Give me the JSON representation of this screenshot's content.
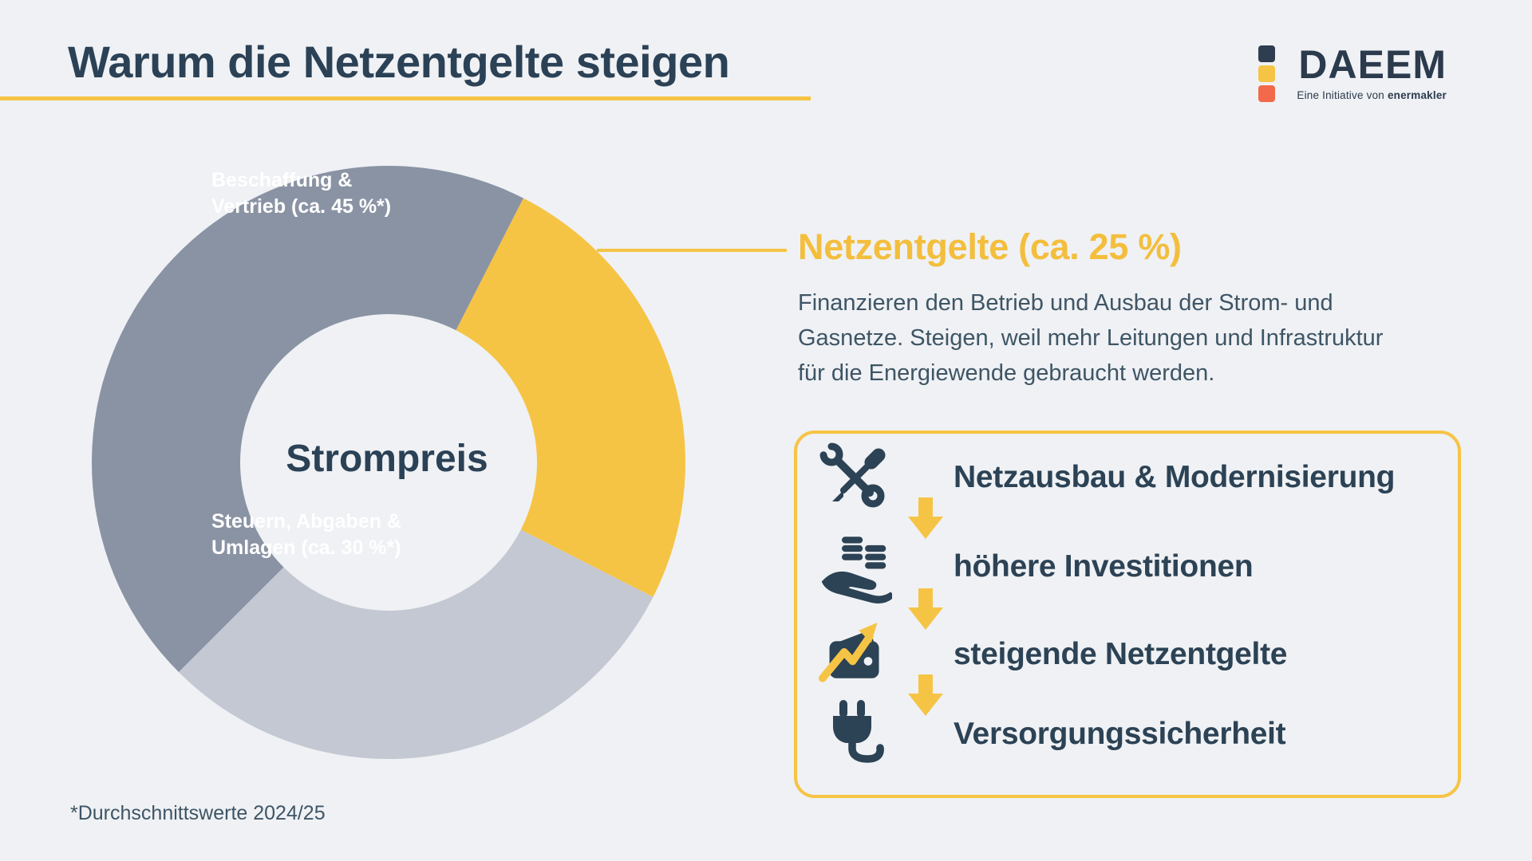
{
  "page": {
    "title": "Warum die Netzentgelte steigen",
    "footnote": "*Durchschnittswerte 2024/25",
    "background_color": "#EFF1F4"
  },
  "logo": {
    "wordmark": "DAEEM",
    "tagline_prefix": "Eine Initiative von ",
    "tagline_brand": "enermakler",
    "square_colors": [
      "#2E3D4F",
      "#F6C445",
      "#F2694B"
    ]
  },
  "chart_data": {
    "type": "pie",
    "donut": true,
    "center_label": "Strompreis",
    "unit": "%",
    "start_angle_deg": 27,
    "legend_position": "on-slices",
    "segments": [
      {
        "name": "Netzentgelte",
        "value": 25,
        "color": "#F6C445",
        "label": "Netzentgelte (ca. 25 %)"
      },
      {
        "name": "Steuern, Abgaben & Umlagen",
        "value": 30,
        "color": "#C3C8D2",
        "label_line1": "Steuern, Abgaben &",
        "label_line2": "Umlagen (ca. 30 %*)"
      },
      {
        "name": "Beschaffung & Vertrieb",
        "value": 45,
        "color": "#8A93A4",
        "label_line1": "Beschaffung &",
        "label_line2": "Vertrieb (ca. 45 %*)"
      }
    ]
  },
  "detail": {
    "heading": "Netzentgelte (ca. 25 %)",
    "body": "Finanzieren den Betrieb und Ausbau der Strom- und Gasnetze. Steigen, weil mehr Leitungen und Infrastruktur für die Energiewende gebraucht werden."
  },
  "flow": {
    "steps": [
      {
        "icon": "tools-icon",
        "label": "Netzausbau & Modernisierung"
      },
      {
        "icon": "hand-coins-icon",
        "label": "höhere Investitionen"
      },
      {
        "icon": "wallet-trend-icon",
        "label": "steigende Netzentgelte"
      },
      {
        "icon": "plug-icon",
        "label": "Versorgungssicherheit"
      }
    ]
  },
  "colors": {
    "accent_yellow": "#F6C445",
    "navy": "#2C4255",
    "title_navy": "#2B4156",
    "body_text": "#3E5565",
    "segment_dark_gray": "#8A93A4",
    "segment_light_gray": "#C3C8D2",
    "slice_label_white": "#FFFFFF",
    "logo_orange": "#F2694B"
  }
}
